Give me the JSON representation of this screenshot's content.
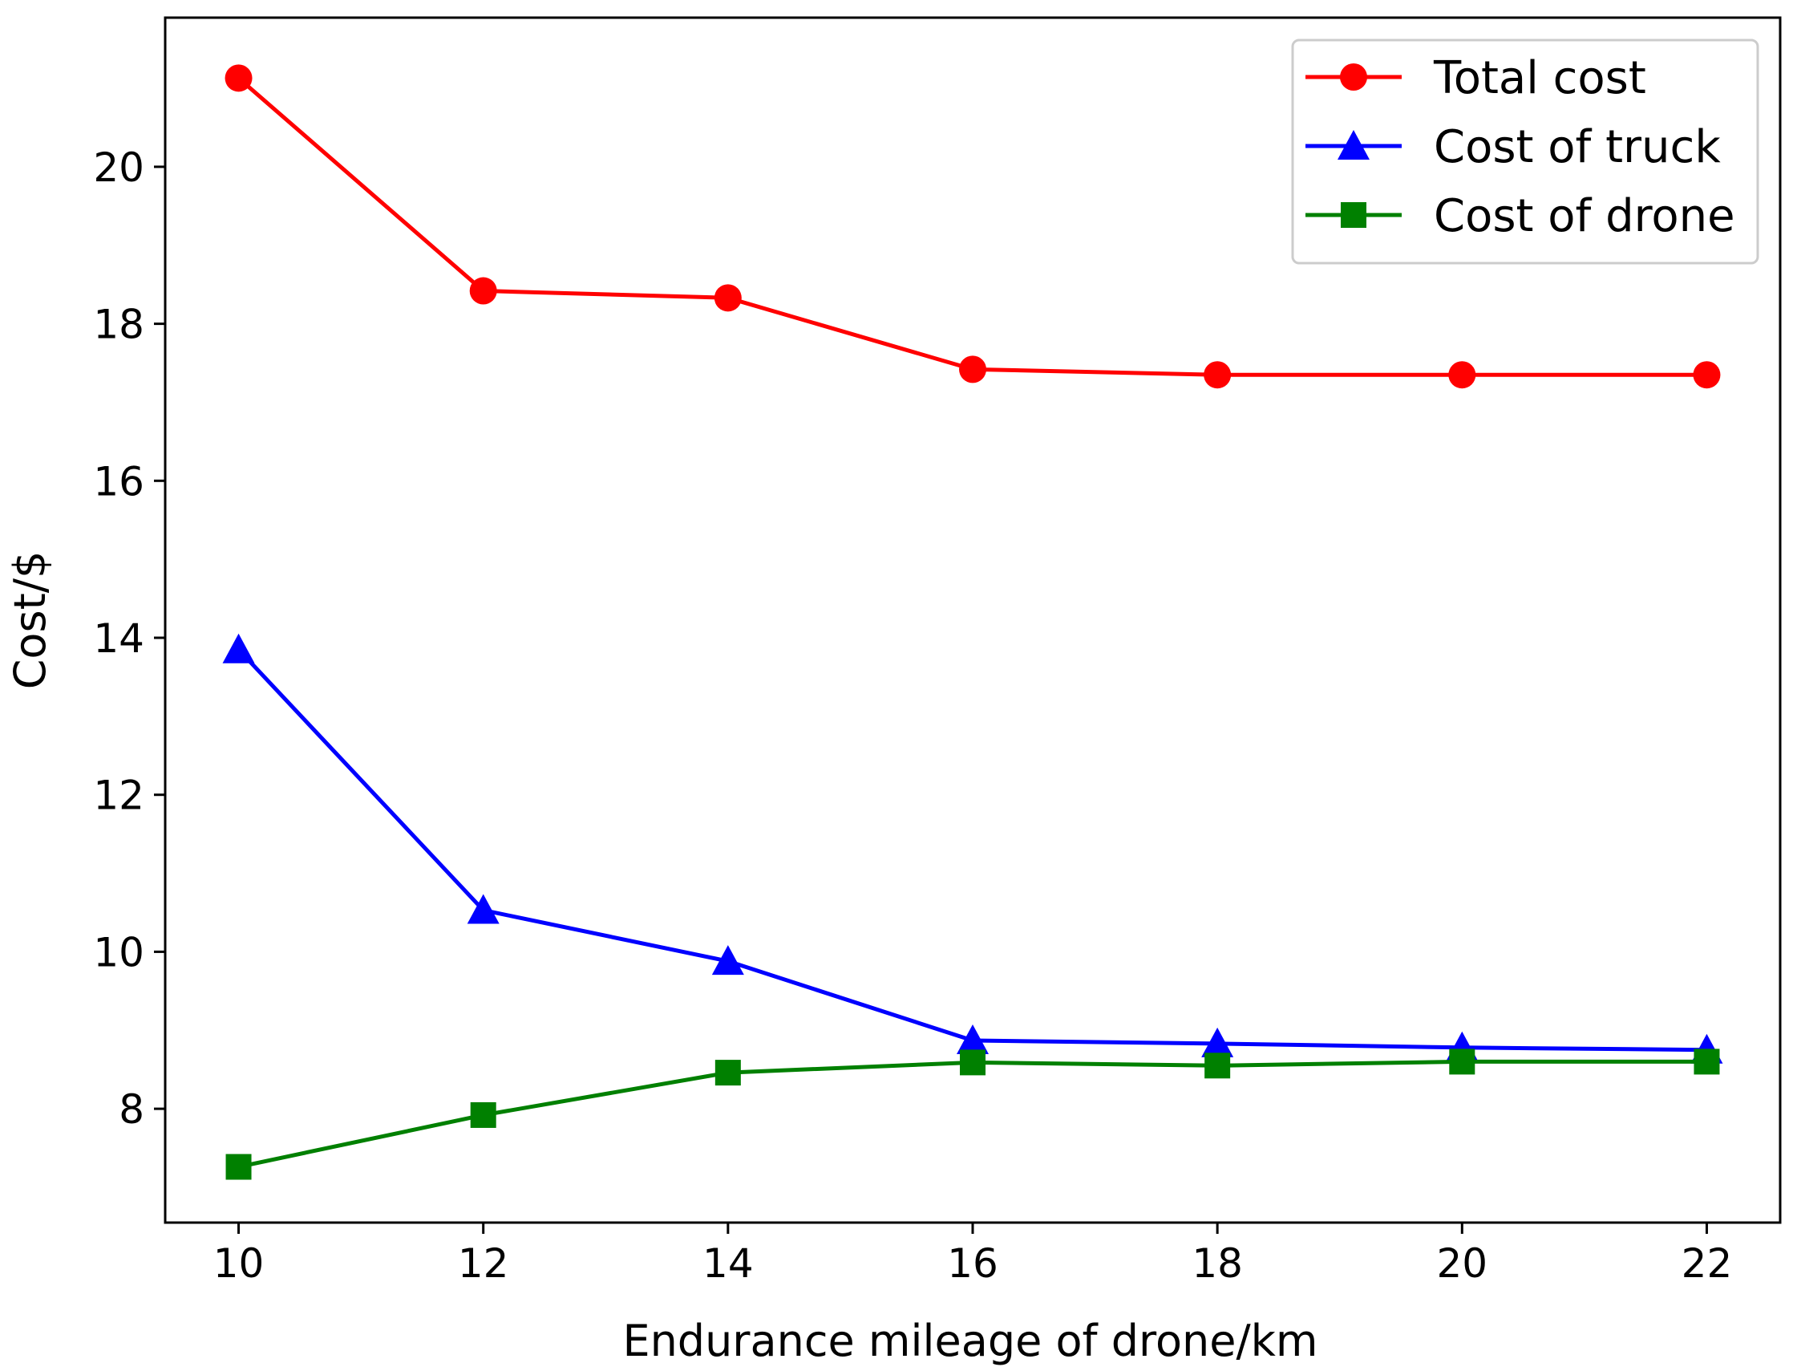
{
  "chart_data": {
    "type": "line",
    "title": "",
    "xlabel": "Endurance mileage of drone/km",
    "ylabel": "Cost/$",
    "x": [
      10,
      12,
      14,
      16,
      18,
      20,
      22
    ],
    "xlim": [
      9.4,
      22.6
    ],
    "ylim": [
      6.55,
      21.9
    ],
    "xticks": [
      10,
      12,
      14,
      16,
      18,
      20,
      22
    ],
    "yticks": [
      8,
      10,
      12,
      14,
      16,
      18,
      20
    ],
    "grid": false,
    "legend_position": "top-right",
    "series": [
      {
        "name": "Total cost",
        "color": "#ff0000",
        "marker": "circle",
        "values": [
          21.13,
          18.42,
          18.33,
          17.42,
          17.35,
          17.35,
          17.35
        ]
      },
      {
        "name": "Cost of truck",
        "color": "#0000ff",
        "marker": "triangle",
        "values": [
          13.85,
          10.53,
          9.88,
          8.87,
          8.83,
          8.78,
          8.75
        ]
      },
      {
        "name": "Cost of drone",
        "color": "#008000",
        "marker": "square",
        "values": [
          7.26,
          7.92,
          8.46,
          8.59,
          8.55,
          8.6,
          8.6
        ]
      }
    ]
  }
}
